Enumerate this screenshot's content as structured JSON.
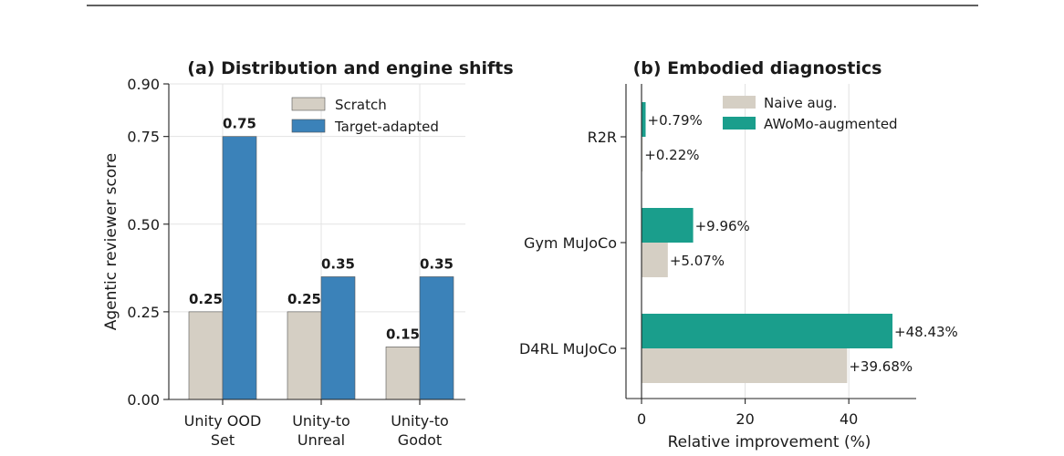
{
  "chart_data": [
    {
      "type": "bar",
      "title": "(a) Distribution and engine shifts",
      "ylabel": "Agentic reviewer score",
      "ylim": [
        0,
        0.9
      ],
      "yticks": [
        "0.00",
        "0.25",
        "0.50",
        "0.75",
        "0.90"
      ],
      "categories": [
        "Unity OOD\nSet",
        "Unity-to\nUnreal",
        "Unity-to\nGodot"
      ],
      "series": [
        {
          "name": "Scratch",
          "color": "#d5cfc4",
          "values": [
            0.25,
            0.25,
            0.15
          ],
          "labels": [
            "0.25",
            "0.25",
            "0.15"
          ]
        },
        {
          "name": "Target-adapted",
          "color": "#3b82b9",
          "values": [
            0.75,
            0.35,
            0.35
          ],
          "labels": [
            "0.75",
            "0.35",
            "0.35"
          ]
        }
      ],
      "legend": "top-right",
      "grid": true
    },
    {
      "type": "bar",
      "orientation": "horizontal",
      "title": "(b) Embodied diagnostics",
      "xlabel": "Relative improvement (%)",
      "xlim": [
        -3,
        53
      ],
      "xticks": [
        "0",
        "20",
        "40"
      ],
      "categories": [
        "R2R",
        "Gym MuJoCo",
        "D4RL MuJoCo"
      ],
      "series": [
        {
          "name": "AWoMo-augmented",
          "color": "#1a9e8c",
          "values": [
            0.79,
            9.96,
            48.43
          ],
          "labels": [
            "+0.79%",
            "+9.96%",
            "+48.43%"
          ]
        },
        {
          "name": "Naive aug.",
          "color": "#d5cfc4",
          "values": [
            0.22,
            5.07,
            39.68
          ],
          "labels": [
            "+0.22%",
            "+5.07%",
            "+39.68%"
          ]
        }
      ],
      "legend_order": [
        "Naive aug.",
        "AWoMo-augmented"
      ],
      "legend": "top-right",
      "grid": true
    }
  ]
}
